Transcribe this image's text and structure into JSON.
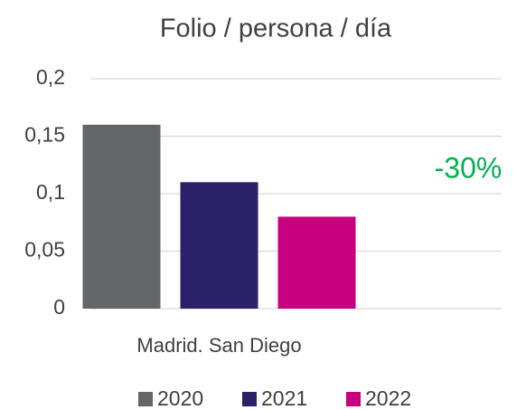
{
  "chart_data": {
    "type": "bar",
    "title": "Folio / persona / día",
    "categories": [
      "Madrid. San Diego"
    ],
    "series": [
      {
        "name": "2020",
        "color": "#636569",
        "values": [
          0.16
        ]
      },
      {
        "name": "2021",
        "color": "#2a2169",
        "values": [
          0.11
        ]
      },
      {
        "name": "2022",
        "color": "#c8007f",
        "values": [
          0.08
        ]
      }
    ],
    "ylim": [
      0,
      0.2
    ],
    "yticks": [
      0,
      {
        "value": 0.05,
        "label": "0,05"
      },
      {
        "value": 0.1,
        "label": "0,1"
      },
      {
        "value": 0.15,
        "label": "0,15"
      },
      {
        "value": 0.2,
        "label": "0,2"
      }
    ],
    "grid": true,
    "legend": "bottom",
    "annotations": [
      {
        "text": "-30%",
        "color": "#00b050"
      }
    ]
  }
}
